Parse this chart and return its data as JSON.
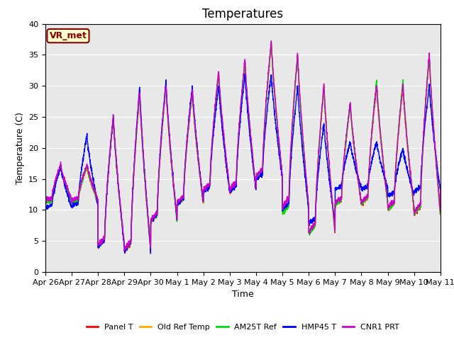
{
  "title": "Temperatures",
  "xlabel": "Time",
  "ylabel": "Temperature (C)",
  "ylim": [
    0,
    40
  ],
  "n_days": 15,
  "background_color": "#e8e8e8",
  "annotation_text": "VR_met",
  "annotation_box_color": "#ffffcc",
  "annotation_border_color": "#8B0000",
  "annotation_text_color": "#8B0000",
  "series": {
    "Panel T": {
      "color": "#ff0000"
    },
    "Old Ref Temp": {
      "color": "#ffaa00"
    },
    "AM25T Ref": {
      "color": "#00dd00"
    },
    "HMP45 T": {
      "color": "#0000ff"
    },
    "CNR1 PRT": {
      "color": "#cc00cc"
    }
  },
  "x_tick_labels": [
    "Apr 26",
    "Apr 27",
    "Apr 28",
    "Apr 29",
    "Apr 30",
    "May 1",
    "May 2",
    "May 3",
    "May 4",
    "May 5",
    "May 6",
    "May 7",
    "May 8",
    "May 9",
    "May 10",
    "May 11"
  ],
  "grid_color": "#ffffff",
  "title_fontsize": 12,
  "label_fontsize": 9,
  "tick_fontsize": 8,
  "day_mins": [
    11,
    11,
    3,
    2,
    7,
    10,
    12,
    12,
    14,
    9,
    5,
    10,
    10,
    9,
    8,
    13
  ],
  "day_maxs": [
    17,
    17,
    25,
    29,
    30,
    29,
    32,
    34,
    37,
    35,
    30,
    27,
    30,
    30,
    35,
    18
  ],
  "hmp45_day_maxs": [
    17,
    22,
    25,
    30,
    31,
    30,
    30,
    32,
    32,
    30,
    24,
    21,
    21,
    20,
    30,
    18
  ],
  "hmp45_day_mins": [
    10,
    10,
    3,
    2,
    7,
    10,
    12,
    12,
    14,
    9,
    7,
    13,
    13,
    12,
    12,
    13
  ],
  "am25t_day_maxs": [
    17,
    17,
    25,
    29,
    30,
    29,
    32,
    34,
    37,
    35,
    30,
    27,
    31,
    31,
    35,
    18
  ],
  "am25t_day_mins": [
    11,
    11,
    3,
    2,
    7,
    10,
    12,
    12,
    14,
    8,
    5,
    10,
    10,
    9,
    8,
    13
  ]
}
